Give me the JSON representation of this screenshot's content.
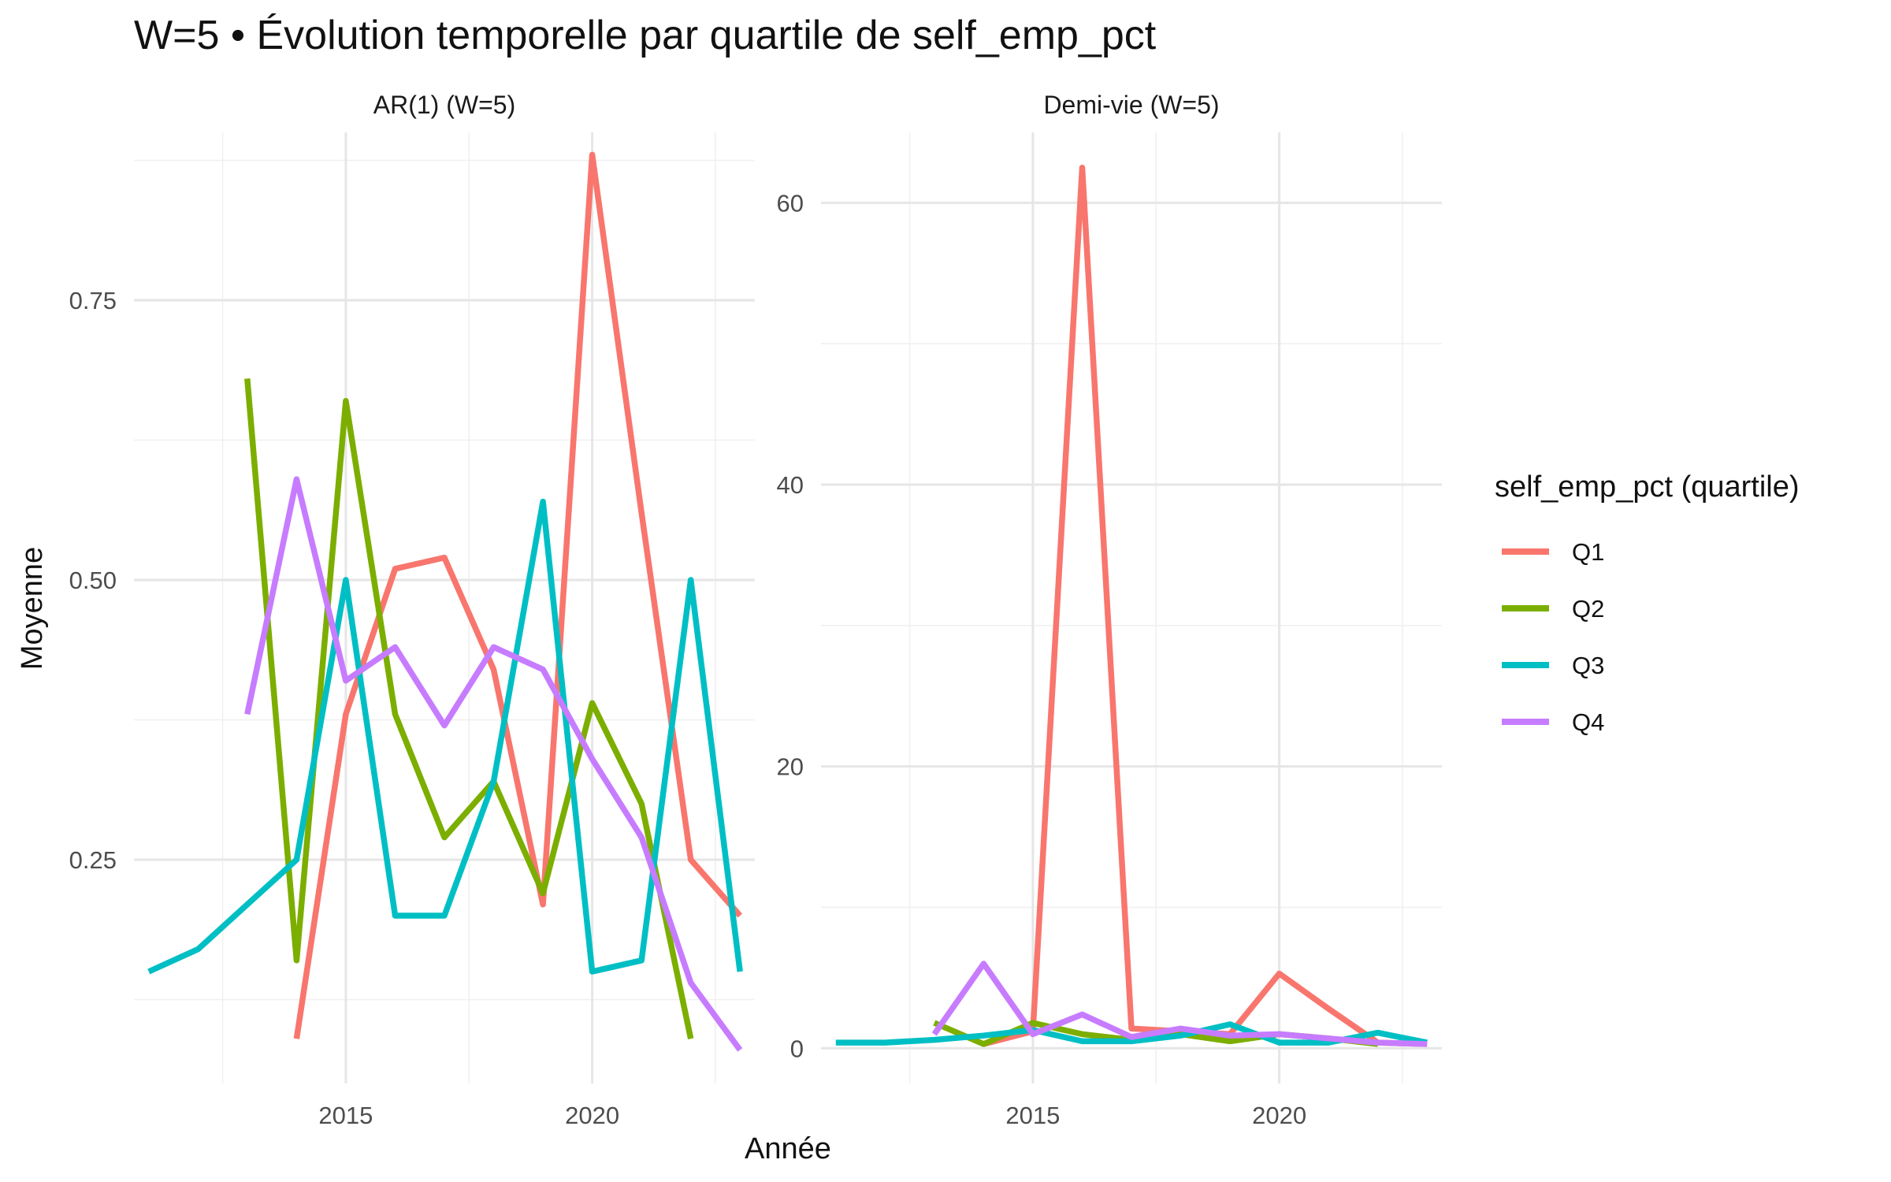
{
  "chart_data": {
    "type": "line",
    "title": "W=5 • Évolution temporelle par quartile de self_emp_pct",
    "xlabel": "Année",
    "ylabel": "Moyenne",
    "legend": {
      "title": "self_emp_pct (quartile)",
      "position": "right"
    },
    "series_colors": {
      "Q1": "#F8766D",
      "Q2": "#7CAE00",
      "Q3": "#00BFC4",
      "Q4": "#C77CFF"
    },
    "panels": [
      {
        "strip": "AR(1) (W=5)",
        "xlim": [
          2010.7,
          2023.3
        ],
        "ylim": [
          0.05,
          0.9
        ],
        "x_ticks": [
          2015,
          2020
        ],
        "x_tick_labels": [
          "2015",
          "2020"
        ],
        "y_ticks": [
          0.25,
          0.5,
          0.75
        ],
        "y_tick_labels": [
          "0.25",
          "0.50",
          "0.75"
        ],
        "series": [
          {
            "name": "Q1",
            "x": [
              2014,
              2015,
              2016,
              2017,
              2018,
              2019,
              2020,
              2021,
              2022,
              2023
            ],
            "y": [
              0.09,
              0.38,
              0.51,
              0.52,
              0.42,
              0.21,
              0.88,
              0.56,
              0.25,
              0.2
            ]
          },
          {
            "name": "Q2",
            "x": [
              2013,
              2014,
              2015,
              2016,
              2017,
              2018,
              2019,
              2020,
              2021,
              2022
            ],
            "y": [
              0.68,
              0.16,
              0.66,
              0.38,
              0.27,
              0.32,
              0.22,
              0.39,
              0.3,
              0.09
            ]
          },
          {
            "name": "Q3",
            "x": [
              2011,
              2012,
              2013,
              2014,
              2015,
              2016,
              2017,
              2018,
              2019,
              2020,
              2021,
              2022,
              2023
            ],
            "y": [
              0.15,
              0.17,
              0.21,
              0.25,
              0.5,
              0.2,
              0.2,
              0.32,
              0.57,
              0.15,
              0.16,
              0.5,
              0.15
            ]
          },
          {
            "name": "Q4",
            "x": [
              2013,
              2014,
              2015,
              2016,
              2017,
              2018,
              2019,
              2020,
              2021,
              2022,
              2023
            ],
            "y": [
              0.38,
              0.59,
              0.41,
              0.44,
              0.37,
              0.44,
              0.42,
              0.34,
              0.27,
              0.14,
              0.08
            ]
          }
        ]
      },
      {
        "strip": "Demi-vie (W=5)",
        "xlim": [
          2010.7,
          2023.3
        ],
        "ylim": [
          -2.5,
          65
        ],
        "x_ticks": [
          2015,
          2020
        ],
        "x_tick_labels": [
          "2015",
          "2020"
        ],
        "y_ticks": [
          0,
          20,
          40,
          60
        ],
        "y_tick_labels": [
          "0",
          "20",
          "40",
          "60"
        ],
        "series": [
          {
            "name": "Q1",
            "x": [
              2014,
              2015,
              2016,
              2017,
              2018,
              2019,
              2020,
              2021,
              2022,
              2023
            ],
            "y": [
              0.3,
              1.2,
              62.5,
              1.4,
              1.2,
              1.0,
              5.3,
              2.8,
              0.4,
              0.3
            ]
          },
          {
            "name": "Q2",
            "x": [
              2013,
              2014,
              2015,
              2016,
              2017,
              2018,
              2019,
              2020,
              2021,
              2022
            ],
            "y": [
              1.8,
              0.3,
              1.8,
              1.0,
              0.6,
              1.0,
              0.5,
              1.0,
              0.7,
              0.3
            ]
          },
          {
            "name": "Q3",
            "x": [
              2011,
              2012,
              2013,
              2014,
              2015,
              2016,
              2017,
              2018,
              2019,
              2020,
              2021,
              2022,
              2023
            ],
            "y": [
              0.4,
              0.4,
              0.6,
              0.9,
              1.3,
              0.5,
              0.5,
              0.9,
              1.7,
              0.4,
              0.4,
              1.1,
              0.4
            ]
          },
          {
            "name": "Q4",
            "x": [
              2013,
              2014,
              2015,
              2016,
              2017,
              2018,
              2019,
              2020,
              2021,
              2022,
              2023
            ],
            "y": [
              1.0,
              6.0,
              1.0,
              2.4,
              0.8,
              1.4,
              0.9,
              1.0,
              0.7,
              0.4,
              0.3
            ]
          }
        ]
      }
    ]
  }
}
